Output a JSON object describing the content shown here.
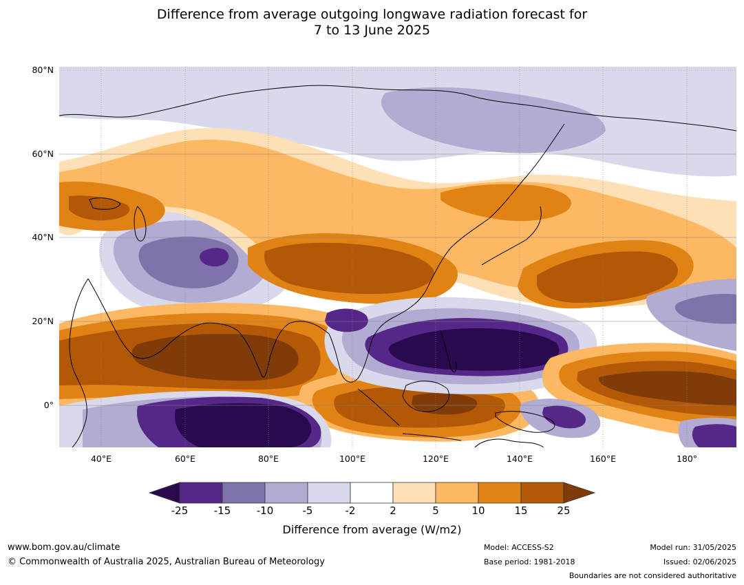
{
  "title": {
    "line1": "Difference from average outgoing longwave radiation forecast for",
    "line2": "7 to 13 June 2025"
  },
  "map": {
    "lat_labels": [
      "80°N",
      "60°N",
      "40°N",
      "20°N",
      "0°"
    ],
    "lon_labels": [
      "40°E",
      "60°E",
      "80°E",
      "100°E",
      "120°E",
      "140°E",
      "160°E",
      "180°"
    ],
    "lat_range": [
      -10,
      80
    ],
    "lon_range": [
      30,
      192
    ]
  },
  "colorbar": {
    "ticks": [
      "-25",
      "-15",
      "-10",
      "-5",
      "-2",
      "2",
      "5",
      "10",
      "15",
      "25"
    ],
    "colors": [
      "#2a0a4f",
      "#542788",
      "#8073ac",
      "#b2abd2",
      "#d8daeb",
      "#ffffff",
      "#fee0b6",
      "#fdb863",
      "#e08214",
      "#b35806",
      "#7f3b08"
    ],
    "label": "Difference from average (W/m2)"
  },
  "footer": {
    "url": "www.bom.gov.au/climate",
    "copyright": "© Commonwealth of Australia 2025, Australian Bureau of Meteorology",
    "model": "Model: ACCESS-S2",
    "base_period": "Base period: 1981-2018",
    "model_run": "Model run: 31/05/2025",
    "issued": "Issued: 02/06/2025",
    "disclaimer": "Boundaries are not considered authoritative"
  }
}
